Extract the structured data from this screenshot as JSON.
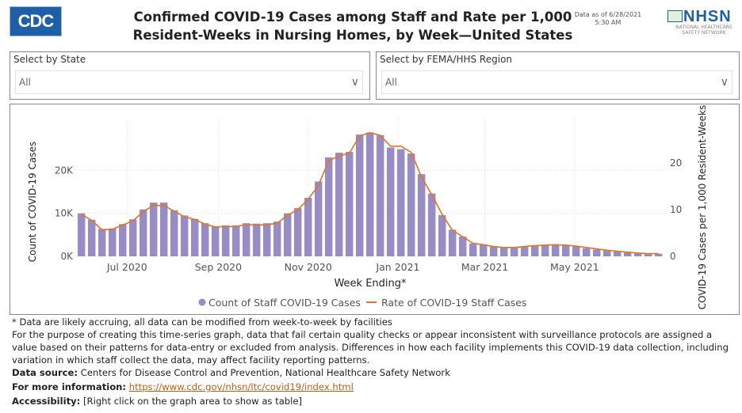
{
  "header": {
    "logo_text": "CDC",
    "title_line1": "Confirmed COVID-19 Cases among Staff and Rate per 1,000",
    "title_line2": "Resident-Weeks in Nursing Homes, by Week—United States",
    "data_as_of_line1": "Data as of 6/28/2021",
    "data_as_of_line2": "5:30 AM",
    "nhsn_logo": {
      "text": "NHSN",
      "subtitle_line1": "NATIONAL HEALTHCARE",
      "subtitle_line2": "SAFETY NETWORK"
    }
  },
  "filters": [
    {
      "label": "Select by State",
      "value": "All"
    },
    {
      "label": "Select by FEMA/HHS Region",
      "value": "All"
    }
  ],
  "chart_data": {
    "type": "bar+line",
    "xlabel": "Week Ending*",
    "ylabel": "Count of COVID-19 Cases",
    "y2label": "COVID-19 Cases per 1,000 Resident-Weeks",
    "ylim": [
      0,
      32000
    ],
    "y2lim": [
      0,
      29.5
    ],
    "yticks": [
      {
        "v": 0,
        "label": "0K"
      },
      {
        "v": 10000,
        "label": "10K"
      },
      {
        "v": 20000,
        "label": "20K"
      }
    ],
    "y2ticks": [
      {
        "v": 0,
        "label": "0"
      },
      {
        "v": 10,
        "label": "10"
      },
      {
        "v": 20,
        "label": "20"
      }
    ],
    "xticks": [
      {
        "date": "2020-07-01",
        "label": "Jul 2020"
      },
      {
        "date": "2020-09-01",
        "label": "Sep 2020"
      },
      {
        "date": "2020-11-01",
        "label": "Nov 2020"
      },
      {
        "date": "2021-01-01",
        "label": "Jan 2021"
      },
      {
        "date": "2021-03-01",
        "label": "Mar 2021"
      },
      {
        "date": "2021-05-01",
        "label": "May 2021"
      }
    ],
    "grid": true,
    "legend_position": "bottom",
    "colors": {
      "bars": "#978dc4",
      "line": "#e8731f"
    },
    "x": [
      "2020-05-31",
      "2020-06-07",
      "2020-06-14",
      "2020-06-21",
      "2020-06-28",
      "2020-07-05",
      "2020-07-12",
      "2020-07-19",
      "2020-07-26",
      "2020-08-02",
      "2020-08-09",
      "2020-08-16",
      "2020-08-23",
      "2020-08-30",
      "2020-09-06",
      "2020-09-13",
      "2020-09-20",
      "2020-09-27",
      "2020-10-04",
      "2020-10-11",
      "2020-10-18",
      "2020-10-25",
      "2020-11-01",
      "2020-11-08",
      "2020-11-15",
      "2020-11-22",
      "2020-11-29",
      "2020-12-06",
      "2020-12-13",
      "2020-12-20",
      "2020-12-27",
      "2021-01-03",
      "2021-01-10",
      "2021-01-17",
      "2021-01-24",
      "2021-01-31",
      "2021-02-07",
      "2021-02-14",
      "2021-02-21",
      "2021-02-28",
      "2021-03-07",
      "2021-03-14",
      "2021-03-21",
      "2021-03-28",
      "2021-04-04",
      "2021-04-11",
      "2021-04-18",
      "2021-04-25",
      "2021-05-02",
      "2021-05-09",
      "2021-05-16",
      "2021-05-23",
      "2021-05-30",
      "2021-06-06",
      "2021-06-13",
      "2021-06-20",
      "2021-06-27"
    ],
    "series": [
      {
        "name": "Count of Staff COVID-19 Cases",
        "type": "bar",
        "axis": "left",
        "values": [
          10000,
          8500,
          6400,
          6500,
          7500,
          8600,
          10900,
          12500,
          12500,
          10700,
          9500,
          8700,
          7700,
          6900,
          7200,
          7200,
          7700,
          7600,
          7700,
          8100,
          10000,
          11200,
          13600,
          17400,
          23000,
          24100,
          24300,
          28300,
          28800,
          28200,
          25300,
          24900,
          23900,
          19100,
          14600,
          9600,
          6200,
          4600,
          3000,
          2700,
          2300,
          2000,
          2100,
          2300,
          2500,
          2600,
          2600,
          2500,
          2300,
          1900,
          1600,
          1400,
          1200,
          900,
          700,
          600,
          600
        ]
      },
      {
        "name": "Rate of COVID-19 Staff Cases",
        "type": "line",
        "axis": "right",
        "values": [
          9.0,
          7.7,
          5.7,
          5.8,
          6.7,
          7.6,
          9.6,
          10.9,
          10.9,
          9.7,
          8.5,
          7.9,
          6.9,
          6.3,
          6.4,
          6.4,
          6.8,
          6.7,
          6.8,
          7.1,
          8.8,
          10.0,
          12.2,
          15.2,
          20.5,
          21.5,
          22.1,
          25.8,
          26.5,
          25.9,
          23.6,
          23.6,
          22.3,
          17.0,
          13.2,
          9.0,
          5.6,
          4.2,
          2.8,
          2.5,
          2.1,
          1.9,
          1.9,
          2.1,
          2.3,
          2.4,
          2.5,
          2.4,
          2.2,
          1.9,
          1.6,
          1.3,
          1.1,
          0.9,
          0.7,
          0.6,
          0.6
        ]
      }
    ]
  },
  "footer": {
    "note1": "* Data are likely accruing, all data can be modified from week-to-week by facilities",
    "note2": "For the purpose of creating this time-series graph, data that fail certain quality checks or appear inconsistent with surveillance protocols are assigned a value based on their patterns for data-entry or excluded from analysis. Differences in how each facility implements this COVID-19 data collection, including variation in which staff collect the data, may affect facility reporting patterns.",
    "source_label": "Data source:",
    "source_text": " Centers for Disease Control and Prevention, National Healthcare Safety Network",
    "info_label": "For more information:",
    "info_link": "https://www.cdc.gov/nhsn/ltc/covid19/index.html",
    "access_label": "Accessibility:",
    "access_text": " [Right click on the graph area to show as table]"
  }
}
